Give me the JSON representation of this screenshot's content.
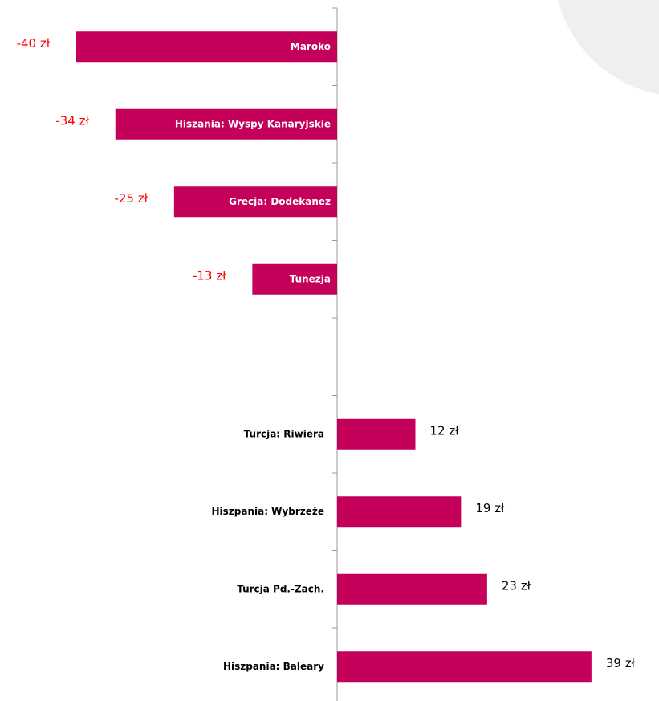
{
  "chart_data": {
    "type": "bar",
    "orientation": "horizontal",
    "categories": [
      "Maroko",
      "Hiszania: Wyspy Kanaryjskie",
      "Grecja: Dodekanez",
      "Tunezja",
      null,
      "Turcja: Riwiera",
      "Hiszpania: Wybrzeże",
      "Turcja Pd.-Zach.",
      "Hiszpania: Baleary"
    ],
    "values": [
      -40,
      -34,
      -25,
      -13,
      null,
      12,
      19,
      23,
      39
    ],
    "value_labels": [
      "-40 zł",
      "-34 zł",
      "-25 zł",
      "-13 zł",
      null,
      "12 zł",
      "19 zł",
      "23 zł",
      "39 zł"
    ],
    "color": "#c5005a",
    "negative_label_color": "#ff0000",
    "positive_label_color": "#000000"
  }
}
